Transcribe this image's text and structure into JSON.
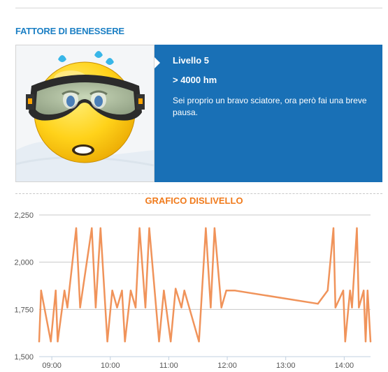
{
  "wellness": {
    "section_title": "FATTORE DI BENESSERE",
    "level_title": "Livello 5",
    "level_value": "> 4000 hm",
    "description": "Sei proprio un bravo sciatore, ora però fai una breve pausa."
  },
  "chart_section_title": "GRAFICO DISLIVELLO",
  "colors": {
    "accent_blue": "#1970b6",
    "title_blue": "#1b7fc4",
    "title_orange": "#f07a1b",
    "line_orange": "#f0935a"
  },
  "chart_data": {
    "type": "line",
    "title": "GRAFICO DISLIVELLO",
    "xlabel": "",
    "ylabel": "",
    "x_ticks": [
      "09:00",
      "10:00",
      "11:00",
      "12:00",
      "13:00",
      "14:00"
    ],
    "y_ticks": [
      "1,500",
      "1,750",
      "2,000",
      "2,250"
    ],
    "ylim": [
      1500,
      2250
    ],
    "xlim": [
      "08:47",
      "14:27"
    ],
    "grid": true,
    "series": [
      {
        "x": [
          "08:47",
          "08:49",
          "08:59",
          "09:04",
          "09:06",
          "09:13",
          "09:16",
          "09:25",
          "09:29",
          "09:41",
          "09:45",
          "09:50",
          "09:57",
          "10:02",
          "10:07",
          "10:12",
          "10:15",
          "10:21",
          "10:26",
          "10:30",
          "10:36",
          "10:40",
          "10:47",
          "10:50",
          "10:55",
          "11:02",
          "11:07",
          "11:13",
          "11:16",
          "11:31",
          "11:38",
          "11:43",
          "11:47",
          "11:54",
          "11:59",
          "12:06",
          "12:08",
          "13:33",
          "13:43",
          "13:49",
          "13:51",
          "13:59",
          "14:01",
          "14:06",
          "14:08",
          "14:13",
          "14:15",
          "14:20",
          "14:22",
          "14:24",
          "14:27"
        ],
        "values": [
          1580,
          1850,
          1580,
          1850,
          1580,
          1850,
          1760,
          2180,
          1760,
          2180,
          1760,
          2180,
          1580,
          1850,
          1760,
          1850,
          1580,
          1850,
          1760,
          2180,
          1760,
          2180,
          1760,
          1580,
          1850,
          1580,
          1860,
          1760,
          1850,
          1580,
          2180,
          1760,
          2180,
          1760,
          1850,
          1850,
          1850,
          1780,
          1850,
          2180,
          1760,
          1850,
          1580,
          1850,
          1760,
          2180,
          1760,
          1850,
          1580,
          1850,
          1580
        ]
      }
    ]
  }
}
